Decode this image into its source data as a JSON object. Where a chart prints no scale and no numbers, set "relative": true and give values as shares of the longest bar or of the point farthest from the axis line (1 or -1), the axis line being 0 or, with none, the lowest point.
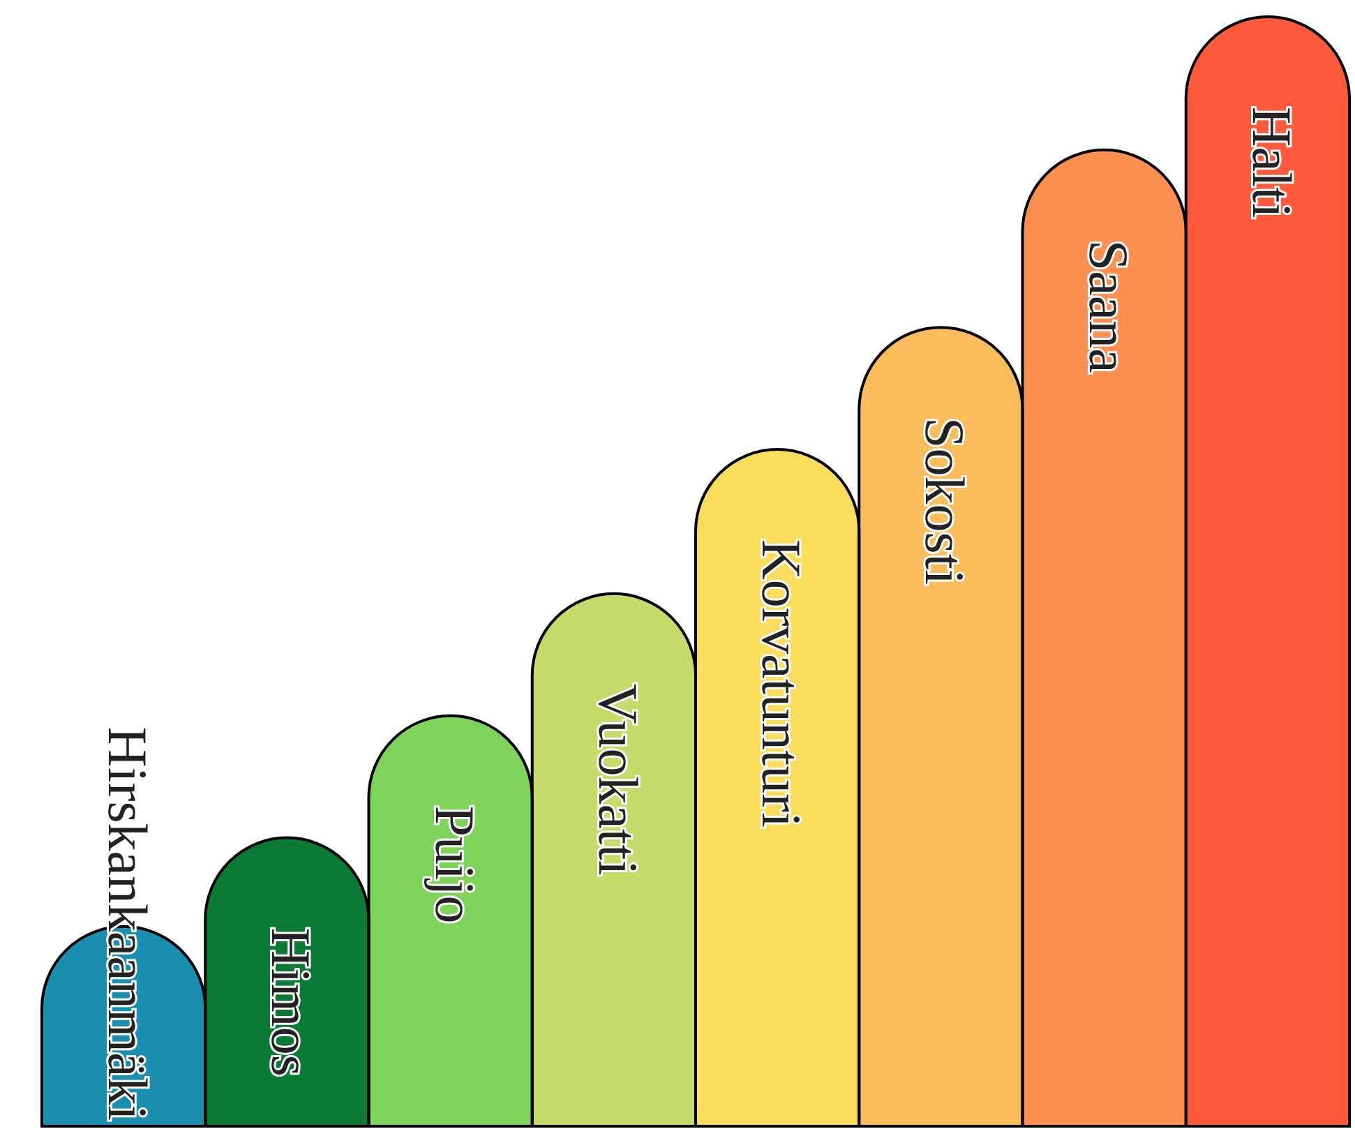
{
  "chart_data": {
    "type": "bar",
    "relative": true,
    "categories": [
      "Hirskankaanmäki",
      "Himos",
      "Puijo",
      "Vuokatti",
      "Korvatunturi",
      "Sokosti",
      "Saana",
      "Halti"
    ],
    "values": [
      0.18,
      0.26,
      0.37,
      0.48,
      0.61,
      0.72,
      0.88,
      1
    ],
    "colors": [
      "#1a8fb0",
      "#0a7a35",
      "#7ed35a",
      "#c5dc6a",
      "#fcdc5c",
      "#fbbd5b",
      "#fd9050",
      "#ff5a3c"
    ]
  }
}
